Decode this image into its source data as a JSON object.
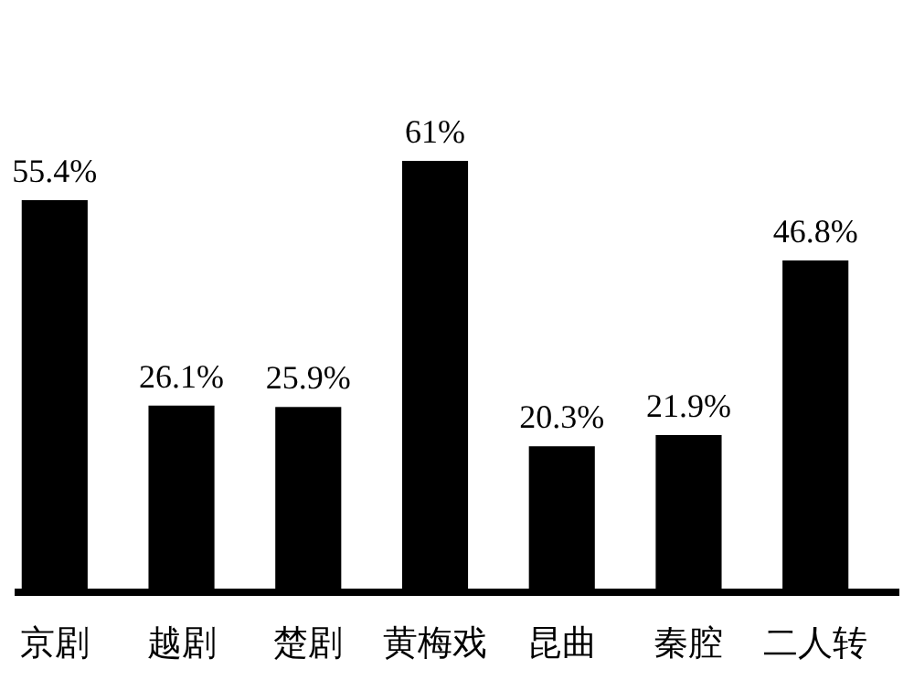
{
  "chart_data": {
    "type": "bar",
    "categories": [
      "京剧",
      "越剧",
      "楚剧",
      "黄梅戏",
      "昆曲",
      "秦腔",
      "二人转"
    ],
    "values": [
      55.4,
      26.1,
      25.9,
      61,
      20.3,
      21.9,
      46.8
    ],
    "value_labels": [
      "55.4%",
      "26.1%",
      "25.9%",
      "61%",
      "20.3%",
      "21.9%",
      "46.8%"
    ],
    "color": "#000000"
  }
}
